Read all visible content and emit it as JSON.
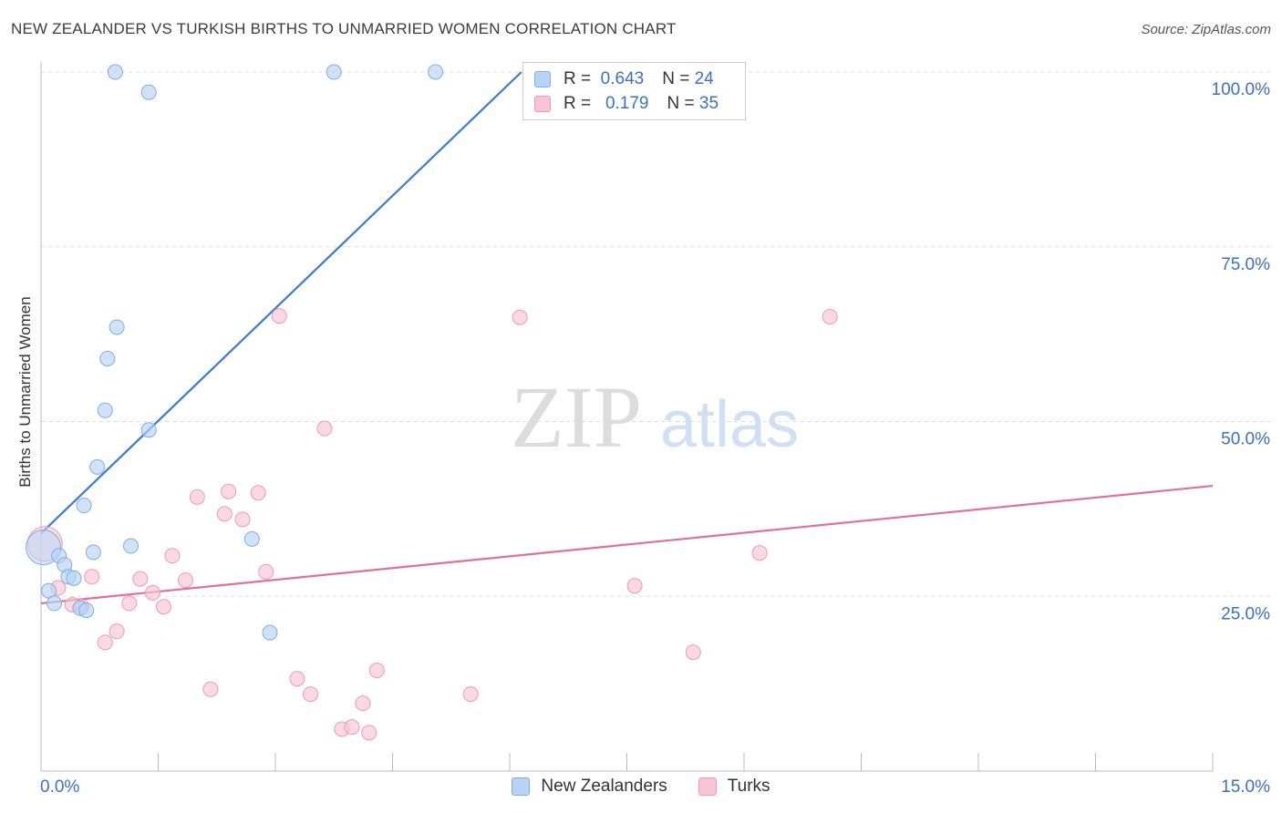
{
  "title": "NEW ZEALANDER VS TURKISH BIRTHS TO UNMARRIED WOMEN CORRELATION CHART",
  "source": "Source: ZipAtlas.com",
  "watermark": {
    "zip": "ZIP",
    "atlas": "atlas"
  },
  "legend_top": [
    {
      "r_label": "R =",
      "r_value": "0.643",
      "n_label": "N =",
      "n_value": "24"
    },
    {
      "r_label": "R =",
      "r_value": "0.179",
      "n_label": "N =",
      "n_value": "35"
    }
  ],
  "bottom_legend": [
    {
      "label": "New Zealanders"
    },
    {
      "label": "Turks"
    }
  ],
  "colors": {
    "blue_fill": "#b8d3f5",
    "blue_stroke": "#7eaee6",
    "blue_line": "#3a7bd5",
    "pink_fill": "#f7c4d4",
    "pink_stroke": "#ee9ab6",
    "pink_line": "#e0709a",
    "tick_label": "#3d6fc9",
    "grid": "#dddddd"
  },
  "chart_data": {
    "type": "scatter",
    "title": "NEW ZEALANDER VS TURKISH BIRTHS TO UNMARRIED WOMEN CORRELATION CHART",
    "xlabel": "",
    "ylabel": "Births to Unmarried Women",
    "xlim": [
      0,
      15
    ],
    "ylim": [
      0,
      100
    ],
    "x_tick_labels": [
      "0.0%",
      "15.0%"
    ],
    "y_ticks": [
      25,
      50,
      75,
      100
    ],
    "y_tick_labels": [
      "25.0%",
      "50.0%",
      "75.0%",
      "100.0%"
    ],
    "grid": true,
    "legend_position": "top-center",
    "series": [
      {
        "name": "New Zealanders",
        "r": 0.643,
        "n": 24,
        "trend": {
          "x": [
            0,
            6.15
          ],
          "y": [
            34,
            100
          ]
        },
        "points": [
          {
            "x": 0.03,
            "y": 32.0,
            "big": true
          },
          {
            "x": 0.1,
            "y": 25.8
          },
          {
            "x": 0.17,
            "y": 24.0
          },
          {
            "x": 0.23,
            "y": 30.8
          },
          {
            "x": 0.3,
            "y": 29.5
          },
          {
            "x": 0.35,
            "y": 27.8
          },
          {
            "x": 0.42,
            "y": 27.6
          },
          {
            "x": 0.5,
            "y": 23.3
          },
          {
            "x": 0.58,
            "y": 23.0
          },
          {
            "x": 0.55,
            "y": 38.0
          },
          {
            "x": 0.67,
            "y": 31.3
          },
          {
            "x": 0.72,
            "y": 43.5
          },
          {
            "x": 0.82,
            "y": 51.6
          },
          {
            "x": 0.85,
            "y": 59.0
          },
          {
            "x": 0.97,
            "y": 63.5
          },
          {
            "x": 0.95,
            "y": 100
          },
          {
            "x": 1.15,
            "y": 32.2
          },
          {
            "x": 1.38,
            "y": 48.8
          },
          {
            "x": 1.38,
            "y": 97.1
          },
          {
            "x": 2.7,
            "y": 33.2
          },
          {
            "x": 2.93,
            "y": 19.8
          },
          {
            "x": 3.75,
            "y": 100
          },
          {
            "x": 5.05,
            "y": 100
          },
          {
            "x": 7.0,
            "y": 100
          }
        ]
      },
      {
        "name": "Turks",
        "r": 0.179,
        "n": 35,
        "trend": {
          "x": [
            0,
            15
          ],
          "y": [
            24,
            40.8
          ]
        },
        "points": [
          {
            "x": 0.05,
            "y": 32.5,
            "big": true
          },
          {
            "x": 0.22,
            "y": 26.2
          },
          {
            "x": 0.4,
            "y": 23.8
          },
          {
            "x": 0.52,
            "y": 23.5
          },
          {
            "x": 0.65,
            "y": 27.8
          },
          {
            "x": 0.82,
            "y": 18.4
          },
          {
            "x": 0.97,
            "y": 20.0
          },
          {
            "x": 1.13,
            "y": 24.0
          },
          {
            "x": 1.27,
            "y": 27.5
          },
          {
            "x": 1.43,
            "y": 25.5
          },
          {
            "x": 1.57,
            "y": 23.5
          },
          {
            "x": 1.68,
            "y": 30.8
          },
          {
            "x": 1.85,
            "y": 27.3
          },
          {
            "x": 2.0,
            "y": 39.2
          },
          {
            "x": 2.17,
            "y": 11.7
          },
          {
            "x": 2.35,
            "y": 36.8
          },
          {
            "x": 2.4,
            "y": 40.0
          },
          {
            "x": 2.58,
            "y": 36.0
          },
          {
            "x": 2.78,
            "y": 39.8
          },
          {
            "x": 2.88,
            "y": 28.5
          },
          {
            "x": 3.05,
            "y": 65.1
          },
          {
            "x": 3.28,
            "y": 13.2
          },
          {
            "x": 3.45,
            "y": 11.0
          },
          {
            "x": 3.63,
            "y": 49.0
          },
          {
            "x": 3.85,
            "y": 6.0
          },
          {
            "x": 3.98,
            "y": 6.3
          },
          {
            "x": 4.12,
            "y": 9.7
          },
          {
            "x": 4.2,
            "y": 5.5
          },
          {
            "x": 4.3,
            "y": 14.4
          },
          {
            "x": 5.5,
            "y": 11.0
          },
          {
            "x": 6.13,
            "y": 64.9
          },
          {
            "x": 7.6,
            "y": 26.5
          },
          {
            "x": 8.35,
            "y": 17.0
          },
          {
            "x": 9.2,
            "y": 31.2
          },
          {
            "x": 10.1,
            "y": 65.0
          }
        ]
      }
    ]
  }
}
